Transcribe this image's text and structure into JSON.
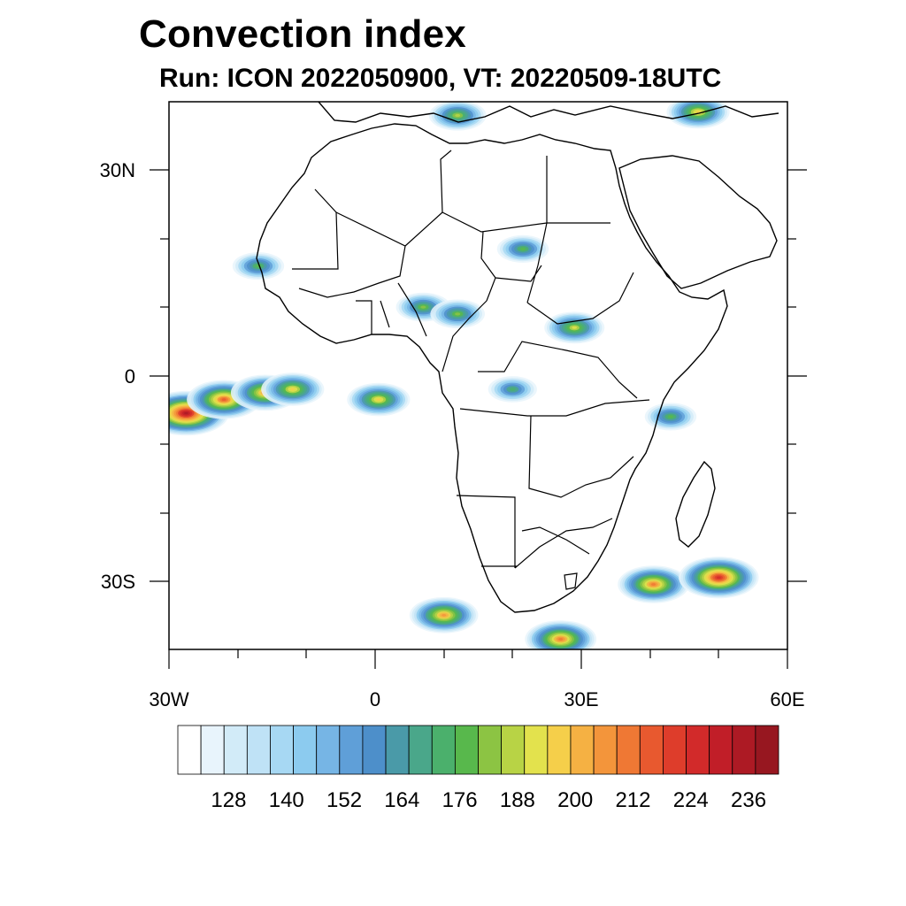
{
  "title": "Convection index",
  "subtitle": "Run: ICON 2022050900,  VT: 20220509-18UTC",
  "axes": {
    "x_ticks": [
      "30W",
      "0",
      "30E",
      "60E"
    ],
    "y_ticks": [
      "30N",
      "0",
      "30S"
    ]
  },
  "map_extent": {
    "lon": [
      -30,
      60
    ],
    "lat": [
      -40,
      40
    ]
  },
  "colorbar": {
    "colors": [
      "#ffffff",
      "#e8f4fc",
      "#d2ebf8",
      "#bfe2f6",
      "#a7d8f3",
      "#8ccbef",
      "#76b5e5",
      "#5f9fd8",
      "#4d8fca",
      "#4a9aa8",
      "#4aa78a",
      "#4bb06c",
      "#58b84c",
      "#8cc443",
      "#b8d345",
      "#e3e24d",
      "#f5cf4a",
      "#f5b143",
      "#f3953b",
      "#ef7834",
      "#e8592f",
      "#de3d2b",
      "#d22a2a",
      "#c11e28",
      "#ad1a24",
      "#971720"
    ],
    "labels": [
      "128",
      "140",
      "152",
      "164",
      "176",
      "188",
      "200",
      "212",
      "224",
      "236"
    ]
  },
  "blobs": [
    {
      "lon": -27.5,
      "lat": -5.5,
      "level": 24
    },
    {
      "lon": -22,
      "lat": -3.5,
      "level": 20
    },
    {
      "lon": -16,
      "lat": -2.5,
      "level": 18
    },
    {
      "lon": -12,
      "lat": -2,
      "level": 16
    },
    {
      "lon": 0.5,
      "lat": -3.5,
      "level": 16
    },
    {
      "lon": -17,
      "lat": 16,
      "level": 12
    },
    {
      "lon": 21.5,
      "lat": 18.5,
      "level": 12
    },
    {
      "lon": 7,
      "lat": 10,
      "level": 13
    },
    {
      "lon": 12,
      "lat": 9,
      "level": 13
    },
    {
      "lon": 29,
      "lat": 7,
      "level": 15
    },
    {
      "lon": 20,
      "lat": -2,
      "level": 11
    },
    {
      "lon": 43,
      "lat": -6,
      "level": 12
    },
    {
      "lon": 40.5,
      "lat": -30.5,
      "level": 19
    },
    {
      "lon": 50,
      "lat": -29.5,
      "level": 22
    },
    {
      "lon": 10,
      "lat": -35,
      "level": 18
    },
    {
      "lon": 27,
      "lat": -38.5,
      "level": 19
    },
    {
      "lon": 12,
      "lat": 38,
      "level": 14
    },
    {
      "lon": 47,
      "lat": 38.5,
      "level": 16
    }
  ]
}
